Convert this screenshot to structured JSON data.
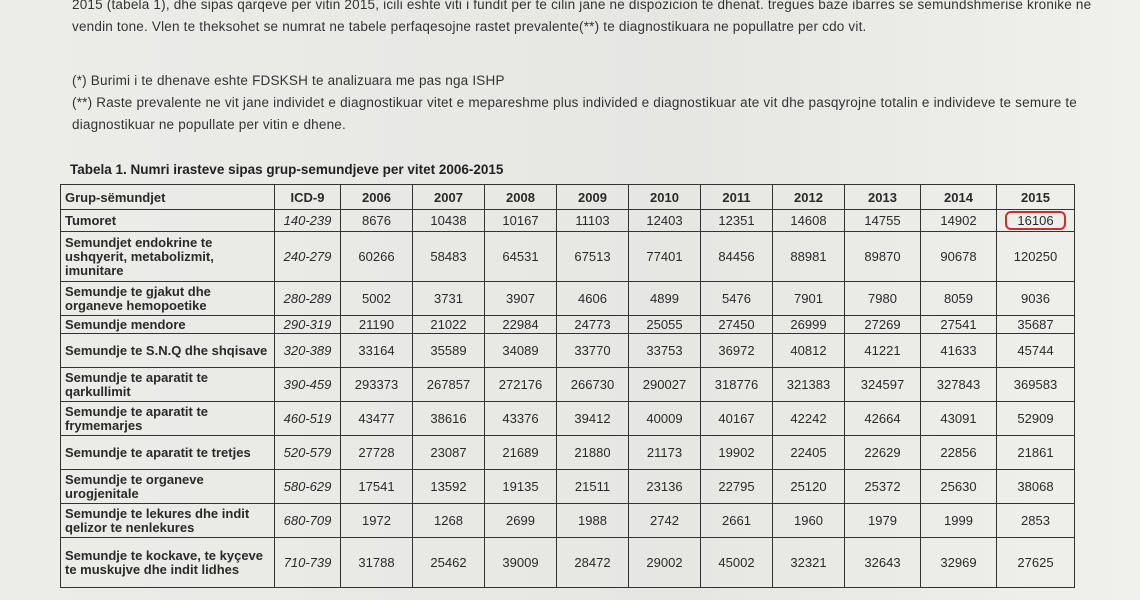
{
  "paragraphs": {
    "p1": "2015 (tabela 1), dhe sipas qarqeve per vitin 2015, icili eshte viti i fundit per te cilin jane ne dispozicion te dhenat. tregues baze ibarres se semundshmerise kronike ne vendin tone. Vlen te theksohet se numrat ne tabele perfaqesojne rastet prevalente(**) te diagnostikuara ne popullatre per cdo vit.",
    "p2": "(*) Burimi i te dhenave eshte FDSKSH te analizuara me pas nga ISHP",
    "p3": "(**) Raste prevalente ne vit jane individet e diagnostikuar vitet e mepareshme plus individed e diagnostikuar ate vit dhe pasqyrojne totalin e individeve te semure te diagnostikuar ne popullate per vitin e dhene."
  },
  "table_title": "Tabela 1. Numri irasteve sipas grup-semundjeve per vitet 2006-2015",
  "headers": [
    "Grup-sëmundjet",
    "ICD-9",
    "2006",
    "2007",
    "2008",
    "2009",
    "2010",
    "2011",
    "2012",
    "2013",
    "2014",
    "2015"
  ],
  "rows": [
    [
      "Tumoret",
      "140-239",
      "8676",
      "10438",
      "10167",
      "11103",
      "12403",
      "12351",
      "14608",
      "14755",
      "14902",
      "16106"
    ],
    [
      "Semundjet endokrine te ushqyerit, metabolizmit, imunitare",
      "240-279",
      "60266",
      "58483",
      "64531",
      "67513",
      "77401",
      "84456",
      "88981",
      "89870",
      "90678",
      "120250"
    ],
    [
      "Semundje te gjakut dhe organeve hemopoetike",
      "280-289",
      "5002",
      "3731",
      "3907",
      "4606",
      "4899",
      "5476",
      "7901",
      "7980",
      "8059",
      "9036"
    ],
    [
      "Semundje mendore",
      "290-319",
      "21190",
      "21022",
      "22984",
      "24773",
      "25055",
      "27450",
      "26999",
      "27269",
      "27541",
      "35687"
    ],
    [
      "Semundje te S.N.Q dhe shqisave",
      "320-389",
      "33164",
      "35589",
      "34089",
      "33770",
      "33753",
      "36972",
      "40812",
      "41221",
      "41633",
      "45744"
    ],
    [
      "Semundje te aparatit te qarkullimit",
      "390-459",
      "293373",
      "267857",
      "272176",
      "266730",
      "290027",
      "318776",
      "321383",
      "324597",
      "327843",
      "369583"
    ],
    [
      "Semundje te aparatit te frymemarjes",
      "460-519",
      "43477",
      "38616",
      "43376",
      "39412",
      "40009",
      "40167",
      "42242",
      "42664",
      "43091",
      "52909"
    ],
    [
      "Semundje te aparatit te tretjes",
      "520-579",
      "27728",
      "23087",
      "21689",
      "21880",
      "21173",
      "19902",
      "22405",
      "22629",
      "22856",
      "21861"
    ],
    [
      "Semundje te organeve urogjenitale",
      "580-629",
      "17541",
      "13592",
      "19135",
      "21511",
      "23136",
      "22795",
      "25120",
      "25372",
      "25630",
      "38068"
    ],
    [
      "Semundje te lekures dhe indit qelizor te nenlekures",
      "680-709",
      "1972",
      "1268",
      "2699",
      "1988",
      "2742",
      "2661",
      "1960",
      "1979",
      "1999",
      "2853"
    ],
    [
      "Semundje te kockave, te kyçeve te muskujve dhe indit lidhes",
      "710-739",
      "31788",
      "25462",
      "39009",
      "28472",
      "29002",
      "45002",
      "32321",
      "32643",
      "32969",
      "27625"
    ]
  ],
  "highlight_color": "#d42a2a"
}
